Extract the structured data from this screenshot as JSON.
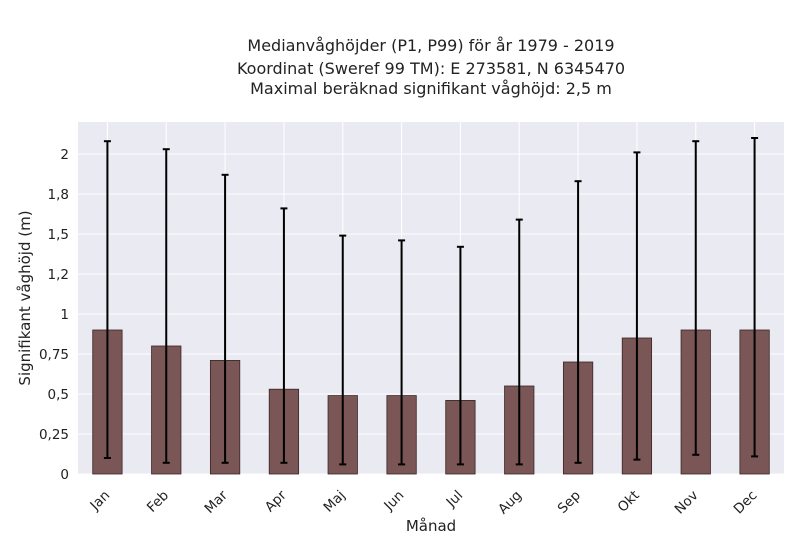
{
  "chart_data": {
    "type": "bar",
    "title_lines": [
      "Medianvåghöjder (P1, P99) för år 1979 - 2019",
      "Koordinat (Sweref 99 TM): E 273581, N 6345470",
      "Maximal beräknad signifikant våghöjd: 2,5 m"
    ],
    "xlabel": "Månad",
    "ylabel": "Signifikant våghöjd (m)",
    "categories": [
      "Jan",
      "Feb",
      "Mar",
      "Apr",
      "Maj",
      "Jun",
      "Jul",
      "Aug",
      "Sep",
      "Okt",
      "Nov",
      "Dec"
    ],
    "series": [
      {
        "values": [
          0.9,
          0.8,
          0.71,
          0.53,
          0.49,
          0.49,
          0.46,
          0.55,
          0.7,
          0.85,
          0.9,
          0.9
        ],
        "p1": [
          0.1,
          0.07,
          0.07,
          0.07,
          0.06,
          0.06,
          0.06,
          0.06,
          0.07,
          0.09,
          0.12,
          0.11
        ],
        "p99": [
          2.08,
          2.03,
          1.87,
          1.66,
          1.49,
          1.46,
          1.42,
          1.59,
          1.83,
          2.01,
          2.08,
          2.1
        ]
      }
    ],
    "yticks": [
      0,
      0.25,
      0.5,
      0.75,
      1.0,
      1.25,
      1.5,
      1.75,
      2.0
    ],
    "ytick_labels": [
      "0",
      "0,25",
      "0,5",
      "0,75",
      "1",
      "1,2",
      "1,5",
      "1,8",
      "2"
    ],
    "ylim": [
      0,
      2.2
    ],
    "grid": true,
    "colors": {
      "bar_fill": "#7a5656",
      "bar_edge": "#3a2626",
      "errorbar": "#000000",
      "plot_background": "#eaeaf2",
      "grid": "#ffffff"
    }
  }
}
